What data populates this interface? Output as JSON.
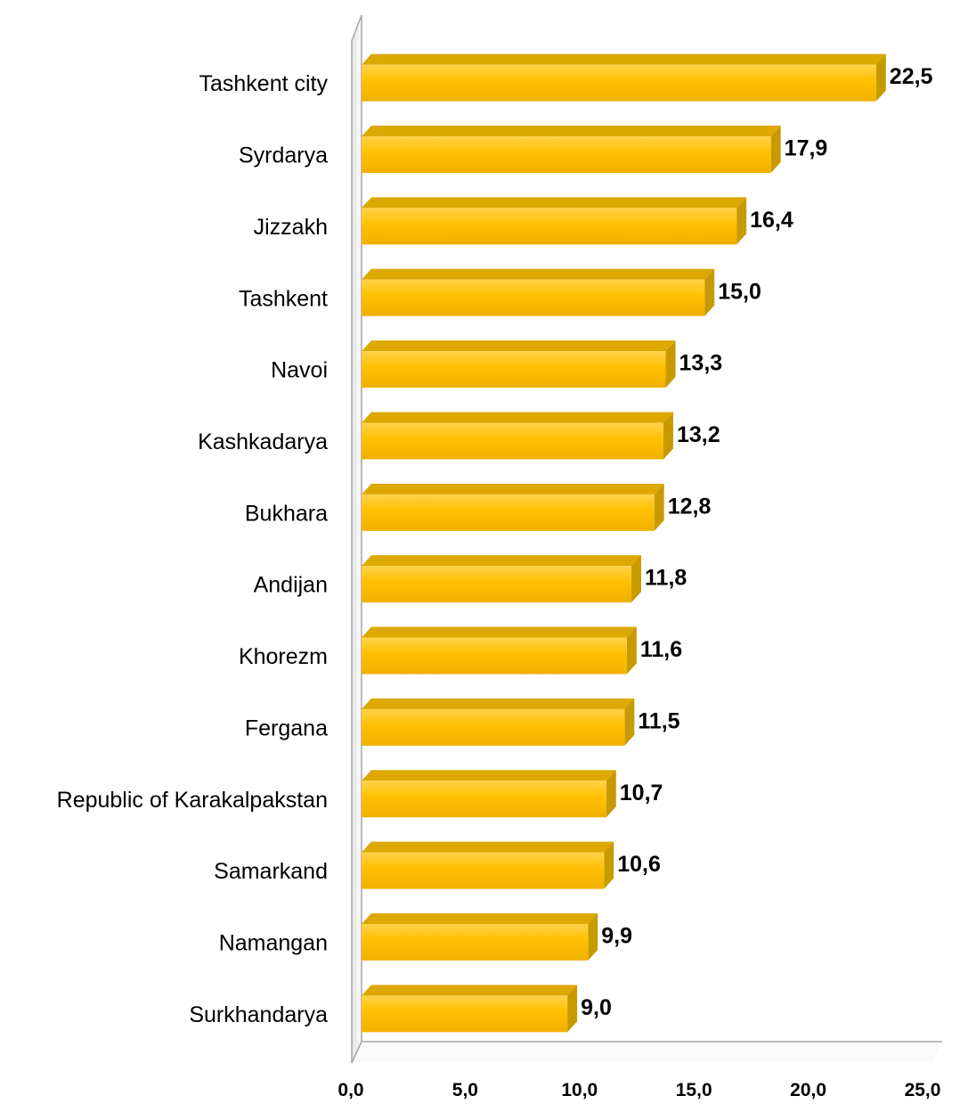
{
  "chart_data": {
    "type": "bar",
    "orientation": "horizontal",
    "categories": [
      "Tashkent city",
      "Syrdarya",
      "Jizzakh",
      "Tashkent",
      "Navoi",
      "Kashkadarya",
      "Bukhara",
      "Andijan",
      "Khorezm",
      "Fergana",
      "Republic of Karakalpakstan",
      "Samarkand",
      "Namangan",
      "Surkhandarya"
    ],
    "values": [
      22.5,
      17.9,
      16.4,
      15.0,
      13.3,
      13.2,
      12.8,
      11.8,
      11.6,
      11.5,
      10.7,
      10.6,
      9.9,
      9.0
    ],
    "value_labels": [
      "22,5",
      "17,9",
      "16,4",
      "15,0",
      "13,3",
      "13,2",
      "12,8",
      "11,8",
      "11,6",
      "11,5",
      "10,7",
      "10,6",
      "9,9",
      "9,0"
    ],
    "xlim": [
      0,
      25
    ],
    "xticks": [
      "0,0",
      "5,0",
      "10,0",
      "15,0",
      "20,0",
      "25,0"
    ],
    "grid": false,
    "legend": "none",
    "bar_color": "#FFC000",
    "bar_side_color": "#C89A00",
    "bar_top_color": "#DDA800",
    "wall_color": "#F2F2F2",
    "axis_color": "#A6A6A6"
  }
}
